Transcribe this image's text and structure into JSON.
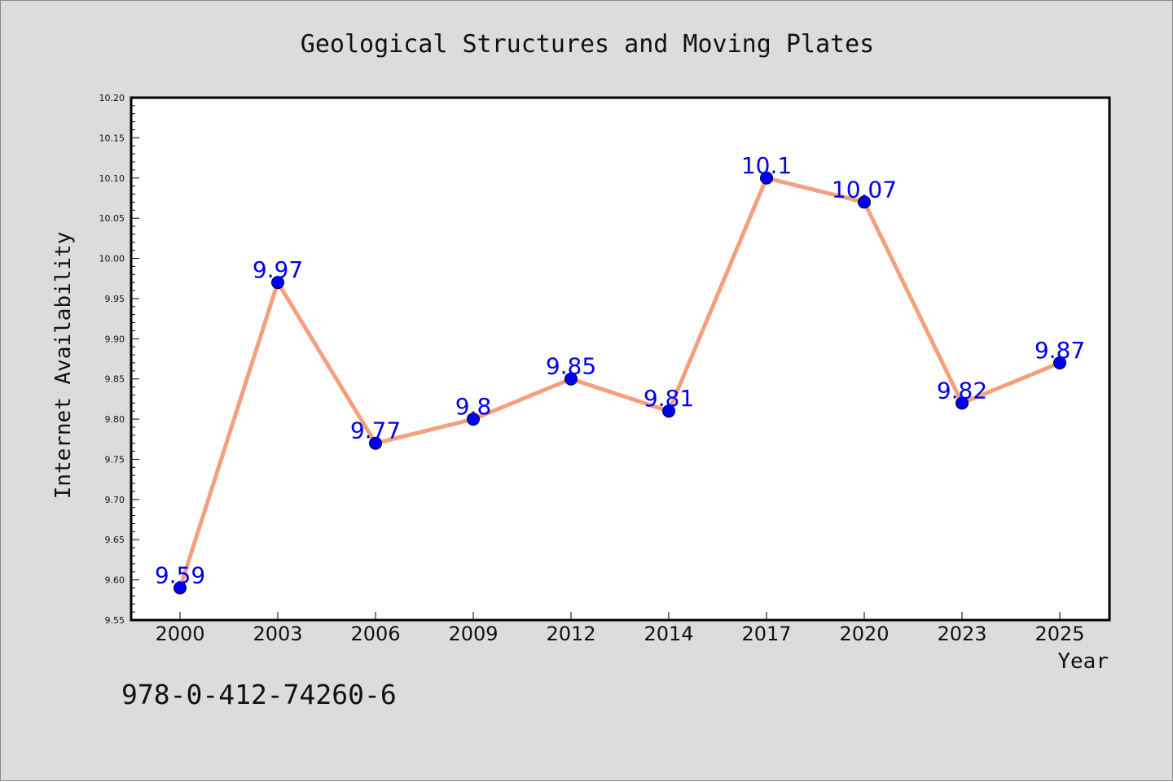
{
  "chart_data": {
    "type": "line",
    "title": "Geological Structures and Moving Plates",
    "xlabel": "Year",
    "ylabel": "Internet Availability",
    "categories": [
      "2000",
      "2003",
      "2006",
      "2009",
      "2012",
      "2014",
      "2017",
      "2020",
      "2023",
      "2025"
    ],
    "series": [
      {
        "values": [
          9.59,
          9.97,
          9.77,
          9.8,
          9.85,
          9.81,
          10.1,
          10.07,
          9.82,
          9.87
        ],
        "labels": [
          "9.59",
          "9.97",
          "9.77",
          "9.8",
          "9.85",
          "9.81",
          "10.1",
          "10.07",
          "9.82",
          "9.87"
        ],
        "line_color": "#f4a07c",
        "marker_color": "#0000ee"
      }
    ],
    "ylim": [
      9.55,
      10.2
    ],
    "yticks": [
      "9.55",
      "9.60",
      "9.65",
      "9.70",
      "9.75",
      "9.80",
      "9.85",
      "9.90",
      "9.95",
      "10.00",
      "10.05",
      "10.10",
      "10.15",
      "10.20"
    ],
    "grid": false,
    "legend": "none",
    "colors": {
      "figure_background": "#dcdcdc",
      "plot_background": "#ffffff",
      "data_label": "#0000ee"
    }
  },
  "footer": {
    "isbn": "978-0-412-74260-6"
  }
}
